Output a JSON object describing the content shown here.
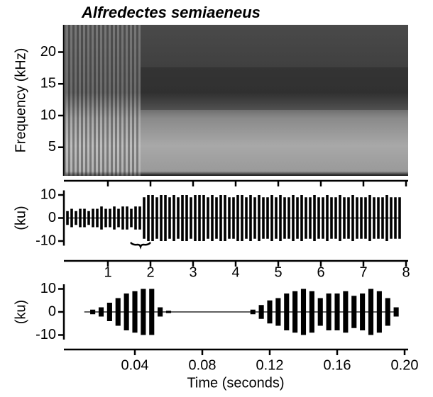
{
  "chart_data": [
    {
      "type": "spectrogram",
      "title": "Alfredectes semiaeneus",
      "y_label": "Frequency (kHz)",
      "xlim": [
        0,
        8
      ],
      "xticks": [
        1,
        2,
        3,
        4,
        5,
        6,
        7,
        8
      ],
      "ylim": [
        0.5,
        24.3
      ],
      "yticks": [
        5,
        10,
        15,
        20
      ]
    },
    {
      "type": "waveform",
      "y_label": "(ku)",
      "color": "#000000",
      "xlim": [
        0,
        8
      ],
      "xticks": [
        1,
        2,
        3,
        4,
        5,
        6,
        7,
        8
      ],
      "ylim": [
        -12,
        12
      ],
      "yticks": [
        10,
        0,
        -10
      ],
      "x": [
        0.05,
        0.15,
        0.25,
        0.35,
        0.45,
        0.55,
        0.65,
        0.75,
        0.85,
        0.95,
        1.05,
        1.15,
        1.25,
        1.35,
        1.45,
        1.55,
        1.65,
        1.75,
        1.85,
        1.95,
        2.05,
        2.15,
        2.25,
        2.35,
        2.45,
        2.55,
        2.65,
        2.75,
        2.85,
        2.95,
        3.05,
        3.15,
        3.25,
        3.35,
        3.45,
        3.55,
        3.65,
        3.75,
        3.85,
        3.95,
        4.05,
        4.15,
        4.25,
        4.35,
        4.45,
        4.55,
        4.65,
        4.75,
        4.85,
        4.95,
        5.05,
        5.15,
        5.25,
        5.35,
        5.45,
        5.55,
        5.65,
        5.75,
        5.85,
        5.95,
        6.05,
        6.15,
        6.25,
        6.35,
        6.45,
        6.55,
        6.65,
        6.75,
        6.85,
        6.95,
        7.05,
        7.15,
        7.25,
        7.35,
        7.45,
        7.55,
        7.65,
        7.75,
        7.85
      ],
      "values": [
        3,
        4,
        3,
        4,
        4,
        3,
        4,
        4,
        5,
        4,
        4,
        5,
        4,
        5,
        5,
        4,
        5,
        5,
        9,
        10,
        10,
        9,
        10,
        10,
        9,
        10,
        9,
        10,
        10,
        9,
        10,
        10,
        10,
        9,
        10,
        9,
        10,
        10,
        9,
        9,
        10,
        10,
        9,
        10,
        9,
        10,
        9,
        9,
        10,
        9,
        10,
        9,
        9,
        10,
        9,
        10,
        9,
        9,
        10,
        9,
        9,
        10,
        9,
        9,
        10,
        9,
        9,
        10,
        9,
        9,
        9,
        10,
        9,
        9,
        9,
        10,
        9,
        9,
        9
      ]
    },
    {
      "type": "waveform",
      "y_label": "(ku)",
      "x_label": "Time (seconds)",
      "color": "#000000",
      "xlim": [
        0,
        0.2
      ],
      "xticks": [
        0.04,
        0.08,
        0.12,
        0.16,
        {
          "value": 0.2,
          "label": "0.20"
        }
      ],
      "ylim": [
        -12,
        12
      ],
      "yticks": [
        10,
        0,
        -10
      ],
      "x": [
        0.01,
        0.015,
        0.02,
        0.025,
        0.03,
        0.035,
        0.04,
        0.045,
        0.05,
        0.055,
        0.06,
        0.065,
        0.07,
        0.075,
        0.08,
        0.085,
        0.09,
        0.095,
        0.1,
        0.105,
        0.11,
        0.115,
        0.12,
        0.125,
        0.13,
        0.135,
        0.14,
        0.145,
        0.15,
        0.155,
        0.16,
        0.165,
        0.17,
        0.175,
        0.18,
        0.185,
        0.19,
        0.195
      ],
      "values": [
        0,
        1,
        2,
        4,
        6,
        8,
        9,
        10,
        10,
        2,
        0.5,
        0,
        0,
        0,
        0,
        0,
        0,
        0,
        0,
        0,
        1,
        3,
        5,
        6,
        8,
        9,
        10,
        9,
        6,
        8,
        8,
        9,
        7,
        8,
        10,
        9,
        6,
        2
      ]
    }
  ]
}
